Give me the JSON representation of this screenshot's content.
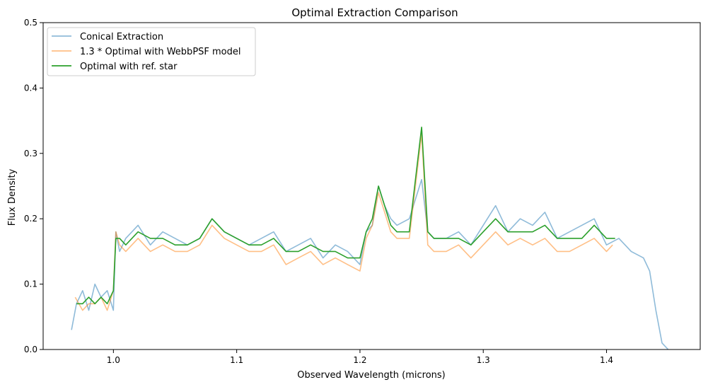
{
  "chart_data": {
    "type": "line",
    "title": "Optimal Extraction Comparison",
    "xlabel": "Observed Wavelength (microns)",
    "ylabel": "Flux Density",
    "xlim": [
      0.943,
      1.476
    ],
    "ylim": [
      0,
      0.5
    ],
    "xticks": [
      1.0,
      1.1,
      1.2,
      1.3,
      1.4
    ],
    "xtick_labels": [
      "1.0",
      "1.1",
      "1.2",
      "1.3",
      "1.4"
    ],
    "yticks": [
      0.0,
      0.1,
      0.2,
      0.3,
      0.4,
      0.5
    ],
    "ytick_labels": [
      "0.0",
      "0.1",
      "0.2",
      "0.3",
      "0.4",
      "0.5"
    ],
    "grid": false,
    "legend_position": "top-left",
    "series": [
      {
        "name": "Conical Extraction",
        "color": "#1f77b4",
        "opacity": 0.5,
        "x": [
          0.966,
          0.97,
          0.975,
          0.98,
          0.985,
          0.99,
          0.995,
          1.0,
          1.002,
          1.005,
          1.01,
          1.02,
          1.03,
          1.04,
          1.05,
          1.06,
          1.07,
          1.08,
          1.09,
          1.1,
          1.11,
          1.12,
          1.13,
          1.14,
          1.15,
          1.16,
          1.17,
          1.18,
          1.19,
          1.2,
          1.205,
          1.21,
          1.215,
          1.22,
          1.225,
          1.23,
          1.24,
          1.25,
          1.255,
          1.26,
          1.27,
          1.28,
          1.29,
          1.3,
          1.31,
          1.32,
          1.33,
          1.34,
          1.35,
          1.36,
          1.37,
          1.38,
          1.39,
          1.4,
          1.41,
          1.42,
          1.43,
          1.435,
          1.44,
          1.445,
          1.45
        ],
        "y": [
          0.03,
          0.07,
          0.09,
          0.06,
          0.1,
          0.08,
          0.09,
          0.06,
          0.18,
          0.15,
          0.17,
          0.19,
          0.16,
          0.18,
          0.17,
          0.16,
          0.17,
          0.2,
          0.18,
          0.17,
          0.16,
          0.17,
          0.18,
          0.15,
          0.16,
          0.17,
          0.14,
          0.16,
          0.15,
          0.13,
          0.18,
          0.19,
          0.25,
          0.22,
          0.2,
          0.19,
          0.2,
          0.26,
          0.18,
          0.17,
          0.17,
          0.18,
          0.16,
          0.19,
          0.22,
          0.18,
          0.2,
          0.19,
          0.21,
          0.17,
          0.18,
          0.19,
          0.2,
          0.16,
          0.17,
          0.15,
          0.14,
          0.12,
          0.06,
          0.01,
          0.0
        ]
      },
      {
        "name": "1.3 * Optimal with WebbPSF model",
        "color": "#ff7f0e",
        "opacity": 0.5,
        "x": [
          0.969,
          0.975,
          0.98,
          0.985,
          0.99,
          0.995,
          1.0,
          1.002,
          1.005,
          1.01,
          1.02,
          1.03,
          1.04,
          1.05,
          1.06,
          1.07,
          1.08,
          1.09,
          1.1,
          1.11,
          1.12,
          1.13,
          1.14,
          1.15,
          1.16,
          1.17,
          1.18,
          1.19,
          1.2,
          1.205,
          1.21,
          1.215,
          1.22,
          1.225,
          1.23,
          1.24,
          1.25,
          1.255,
          1.26,
          1.27,
          1.28,
          1.29,
          1.3,
          1.31,
          1.32,
          1.33,
          1.34,
          1.35,
          1.36,
          1.37,
          1.38,
          1.39,
          1.4,
          1.405
        ],
        "y": [
          0.08,
          0.06,
          0.07,
          0.07,
          0.08,
          0.06,
          0.09,
          0.18,
          0.16,
          0.15,
          0.17,
          0.15,
          0.16,
          0.15,
          0.15,
          0.16,
          0.19,
          0.17,
          0.16,
          0.15,
          0.15,
          0.16,
          0.13,
          0.14,
          0.15,
          0.13,
          0.14,
          0.13,
          0.12,
          0.17,
          0.19,
          0.24,
          0.21,
          0.18,
          0.17,
          0.17,
          0.33,
          0.16,
          0.15,
          0.15,
          0.16,
          0.14,
          0.16,
          0.18,
          0.16,
          0.17,
          0.16,
          0.17,
          0.15,
          0.15,
          0.16,
          0.17,
          0.15,
          0.16
        ]
      },
      {
        "name": "Optimal with ref. star",
        "color": "#2ca02c",
        "opacity": 1,
        "x": [
          0.97,
          0.975,
          0.98,
          0.985,
          0.99,
          0.995,
          1.0,
          1.002,
          1.005,
          1.01,
          1.02,
          1.03,
          1.04,
          1.05,
          1.06,
          1.07,
          1.08,
          1.09,
          1.1,
          1.11,
          1.12,
          1.13,
          1.14,
          1.15,
          1.16,
          1.17,
          1.18,
          1.19,
          1.2,
          1.205,
          1.21,
          1.215,
          1.22,
          1.225,
          1.23,
          1.24,
          1.25,
          1.255,
          1.26,
          1.27,
          1.28,
          1.29,
          1.3,
          1.31,
          1.32,
          1.33,
          1.34,
          1.35,
          1.36,
          1.37,
          1.38,
          1.39,
          1.4,
          1.407
        ],
        "y": [
          0.07,
          0.07,
          0.08,
          0.07,
          0.08,
          0.07,
          0.09,
          0.17,
          0.17,
          0.16,
          0.18,
          0.17,
          0.17,
          0.16,
          0.16,
          0.17,
          0.2,
          0.18,
          0.17,
          0.16,
          0.16,
          0.17,
          0.15,
          0.15,
          0.16,
          0.15,
          0.15,
          0.14,
          0.14,
          0.18,
          0.2,
          0.25,
          0.22,
          0.19,
          0.18,
          0.18,
          0.34,
          0.18,
          0.17,
          0.17,
          0.17,
          0.16,
          0.18,
          0.2,
          0.18,
          0.18,
          0.18,
          0.19,
          0.17,
          0.17,
          0.17,
          0.19,
          0.17,
          0.17
        ]
      }
    ]
  }
}
